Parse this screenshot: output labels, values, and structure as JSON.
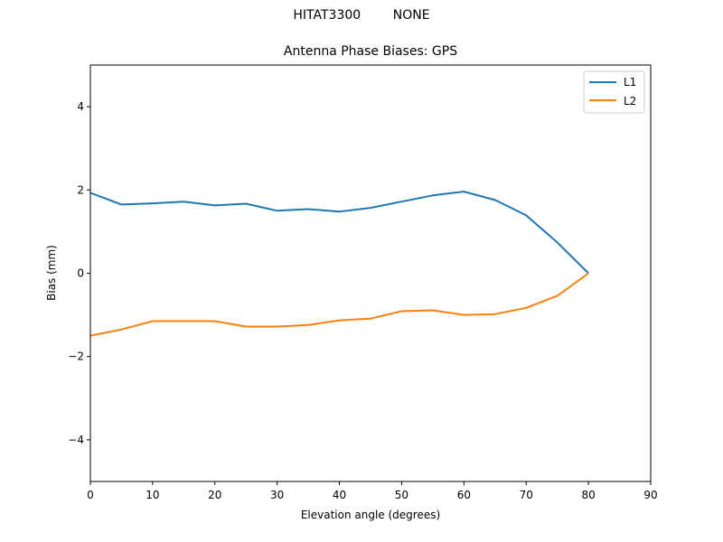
{
  "figure": {
    "suptitle_left": "HITAT3300",
    "suptitle_right": "NONE"
  },
  "chart_data": {
    "type": "line",
    "title": "Antenna Phase Biases: GPS",
    "suptitle": "HITAT3300        NONE",
    "xlabel": "Elevation angle (degrees)",
    "ylabel": "Bias (mm)",
    "xlim": [
      0,
      90
    ],
    "ylim": [
      -5,
      5
    ],
    "xticks": [
      0,
      10,
      20,
      30,
      40,
      50,
      60,
      70,
      80,
      90
    ],
    "yticks": [
      -4,
      -2,
      0,
      2,
      4
    ],
    "ytick_labels": [
      "−4",
      "−2",
      "0",
      "2",
      "4"
    ],
    "grid": false,
    "legend_position": "upper right",
    "x": [
      0,
      5,
      10,
      15,
      20,
      25,
      30,
      35,
      40,
      45,
      50,
      55,
      60,
      65,
      70,
      75,
      80
    ],
    "series": [
      {
        "name": "L1",
        "color": "#1f77b4",
        "values": [
          1.93,
          1.65,
          1.68,
          1.72,
          1.63,
          1.67,
          1.5,
          1.54,
          1.48,
          1.57,
          1.72,
          1.87,
          1.96,
          1.76,
          1.39,
          0.74,
          0.0
        ]
      },
      {
        "name": "L2",
        "color": "#ff7f0e",
        "values": [
          -1.5,
          -1.35,
          -1.15,
          -1.15,
          -1.15,
          -1.28,
          -1.28,
          -1.24,
          -1.13,
          -1.09,
          -0.91,
          -0.89,
          -1.0,
          -0.98,
          -0.83,
          -0.54,
          0.0
        ]
      }
    ]
  }
}
